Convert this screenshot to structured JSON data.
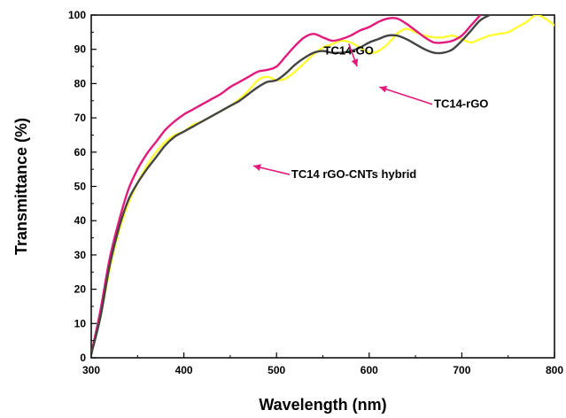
{
  "chart_data": {
    "type": "line",
    "title": "",
    "xlabel": "Wavelength (nm)",
    "ylabel": "Transmittance (%)",
    "xlim": [
      300,
      800
    ],
    "ylim": [
      0,
      100
    ],
    "xticks": [
      300,
      400,
      500,
      600,
      700,
      800
    ],
    "yticks": [
      0,
      10,
      20,
      30,
      40,
      50,
      60,
      70,
      80,
      90,
      100
    ],
    "grid": false,
    "legend": "none",
    "series": [
      {
        "color": "#ffff33",
        "x": [
          300,
          310,
          320,
          330,
          340,
          350,
          360,
          370,
          380,
          390,
          400,
          410,
          420,
          430,
          440,
          450,
          460,
          470,
          480,
          490,
          500,
          510,
          520,
          530,
          540,
          550,
          560,
          570,
          580,
          590,
          600,
          610,
          620,
          630,
          640,
          650,
          660,
          670,
          680,
          690,
          700,
          710,
          720,
          730,
          740,
          750,
          760,
          770,
          780,
          790,
          800
        ],
        "y": [
          1,
          12,
          26,
          37,
          45,
          51,
          56,
          60,
          63,
          65,
          66,
          68,
          69,
          70.5,
          72,
          73.5,
          75.5,
          78,
          81,
          82,
          81,
          81.5,
          83.5,
          86,
          88.5,
          90.5,
          91.5,
          92.5,
          92,
          90.5,
          89,
          89.5,
          91.5,
          94.5,
          96,
          95,
          94,
          93.5,
          93.5,
          94,
          93,
          92,
          93,
          94,
          94.5,
          95,
          96.5,
          98,
          100,
          99,
          97
        ]
      },
      {
        "color": "#e4197c",
        "x": [
          300,
          310,
          320,
          330,
          340,
          350,
          360,
          370,
          380,
          390,
          400,
          410,
          420,
          430,
          440,
          450,
          460,
          470,
          480,
          490,
          500,
          510,
          520,
          530,
          540,
          550,
          560,
          570,
          580,
          590,
          600,
          610,
          620,
          630,
          640,
          650,
          660,
          670,
          680,
          690,
          700,
          710,
          720
        ],
        "y": [
          1,
          14,
          29,
          40,
          49,
          55,
          59.5,
          63,
          66.5,
          69,
          71,
          72.5,
          74,
          75.5,
          77,
          79,
          80.5,
          82,
          83.5,
          84,
          85,
          88,
          91,
          93.5,
          94.5,
          93.5,
          92.5,
          93,
          94,
          95.5,
          96.5,
          98,
          99,
          99,
          97.5,
          95.5,
          93.5,
          92,
          92,
          92.5,
          94,
          97,
          100
        ]
      },
      {
        "color": "#444444",
        "x": [
          300,
          310,
          320,
          330,
          340,
          350,
          360,
          370,
          380,
          390,
          400,
          410,
          420,
          430,
          440,
          450,
          460,
          470,
          480,
          490,
          500,
          510,
          520,
          530,
          540,
          550,
          560,
          570,
          580,
          590,
          600,
          610,
          620,
          630,
          640,
          650,
          660,
          670,
          680,
          690,
          700,
          710,
          720,
          730
        ],
        "y": [
          1,
          12,
          27,
          38,
          46,
          51,
          55,
          58.5,
          62,
          64.5,
          66,
          67.5,
          69,
          70.5,
          72,
          73.5,
          75,
          77,
          79,
          80.5,
          81,
          83,
          85.5,
          87.5,
          89,
          89.5,
          89,
          89,
          89.5,
          90.5,
          92,
          93,
          94,
          94,
          93,
          91.5,
          90,
          89,
          89,
          90,
          92.5,
          95.5,
          98.5,
          100
        ]
      }
    ],
    "annotations": [
      {
        "text": "TC14-GO",
        "x": 551,
        "y": 88.5,
        "target": [
          587,
          85
        ]
      },
      {
        "text": "TC14-rGO",
        "x": 670,
        "y": 73,
        "target": [
          611,
          79
        ]
      },
      {
        "text": "TC14 rGO-CNTs hybrid",
        "x": 516,
        "y": 52.5,
        "target": [
          475,
          56
        ]
      }
    ]
  }
}
